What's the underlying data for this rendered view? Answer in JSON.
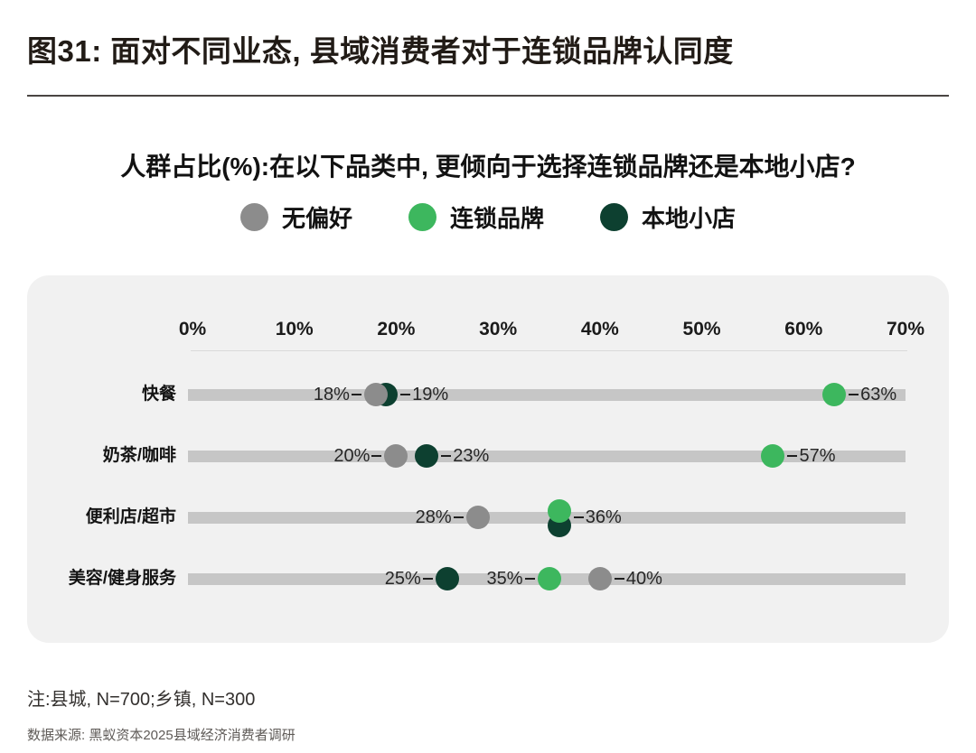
{
  "page": {
    "title": "图31: 面对不同业态, 县域消费者对于连锁品牌认同度",
    "subtitle": "人群占比(%):在以下品类中, 更倾向于选择连锁品牌还是本地小店?",
    "note": "注:县城, N=700;乡镇, N=300",
    "source": "数据来源: 黑蚁资本2025县域经济消费者调研"
  },
  "legend": {
    "items": [
      {
        "label": "无偏好",
        "color": "#8c8c8c"
      },
      {
        "label": "连锁品牌",
        "color": "#3db75e"
      },
      {
        "label": "本地小店",
        "color": "#0d4030"
      }
    ]
  },
  "colors": {
    "panel_background": "#f1f1f1",
    "track": "#c6c6c6",
    "axis_line": "#d9d9d9",
    "no_preference": "#8c8c8c",
    "chain_brand": "#3db75e",
    "local_store": "#0d4030"
  },
  "chart_data": {
    "type": "scatter",
    "subtype": "dot-plot",
    "title": "人群占比(%):在以下品类中, 更倾向于选择连锁品牌还是本地小店?",
    "xlabel": "人群占比(%)",
    "axis": {
      "min": 0,
      "max": 70,
      "step": 10,
      "tick_labels": [
        "0%",
        "10%",
        "20%",
        "30%",
        "40%",
        "50%",
        "60%",
        "70%"
      ]
    },
    "grid": false,
    "legend_position": "top-center",
    "categories": [
      "快餐",
      "奶茶/咖啡",
      "便利店/超市",
      "美容/健身服务"
    ],
    "series": [
      {
        "name": "无偏好",
        "color": "#8c8c8c",
        "values": [
          18,
          20,
          28,
          40
        ]
      },
      {
        "name": "连锁品牌",
        "color": "#3db75e",
        "values": [
          63,
          57,
          36,
          35
        ]
      },
      {
        "name": "本地小店",
        "color": "#0d4030",
        "values": [
          19,
          23,
          36,
          25
        ]
      }
    ],
    "rows": [
      {
        "category": "快餐",
        "points": [
          {
            "series": "本地小店",
            "value": 19,
            "label": "19%",
            "side": "right"
          },
          {
            "series": "无偏好",
            "value": 18,
            "label": "18%",
            "side": "left"
          },
          {
            "series": "连锁品牌",
            "value": 63,
            "label": "63%",
            "side": "right"
          }
        ]
      },
      {
        "category": "奶茶/咖啡",
        "points": [
          {
            "series": "无偏好",
            "value": 20,
            "label": "20%",
            "side": "left"
          },
          {
            "series": "本地小店",
            "value": 23,
            "label": "23%",
            "side": "right"
          },
          {
            "series": "连锁品牌",
            "value": 57,
            "label": "57%",
            "side": "right"
          }
        ]
      },
      {
        "category": "便利店/超市",
        "points": [
          {
            "series": "无偏好",
            "value": 28,
            "label": "28%",
            "side": "left"
          },
          {
            "series": "本地小店",
            "value": 36,
            "label": null,
            "side": null,
            "dy": 9
          },
          {
            "series": "连锁品牌",
            "value": 36,
            "label": "36%",
            "side": "right",
            "dy": -7
          }
        ]
      },
      {
        "category": "美容/健身服务",
        "points": [
          {
            "series": "本地小店",
            "value": 25,
            "label": "25%",
            "side": "left"
          },
          {
            "series": "连锁品牌",
            "value": 35,
            "label": "35%",
            "side": "left"
          },
          {
            "series": "无偏好",
            "value": 40,
            "label": "40%",
            "side": "right"
          }
        ]
      }
    ]
  }
}
